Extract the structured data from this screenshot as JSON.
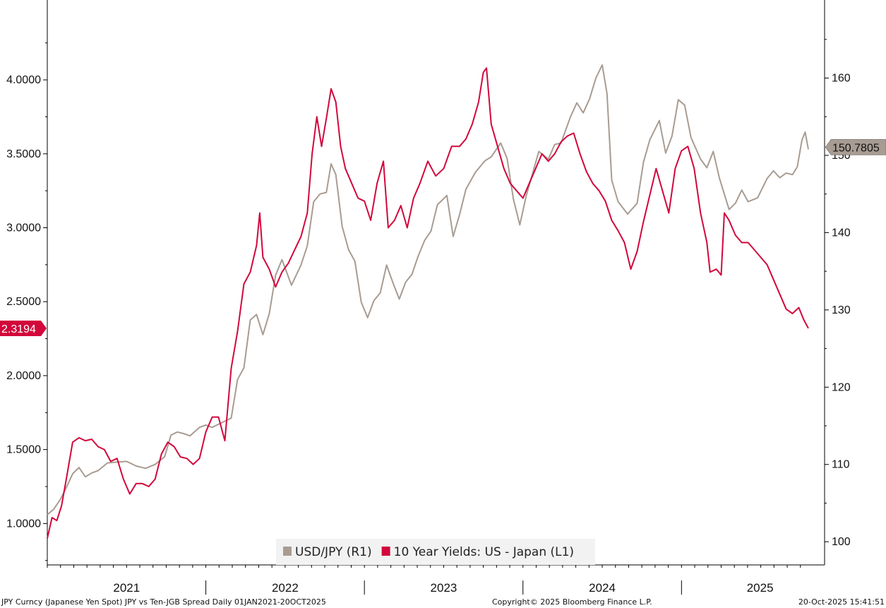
{
  "chart_data": {
    "type": "line",
    "title": "",
    "x_years": [
      "2021",
      "2022",
      "2023",
      "2024",
      "2025"
    ],
    "x_range": [
      "2021-01-01",
      "2025-10-20"
    ],
    "y_left": {
      "range": [
        0.72,
        4.54
      ],
      "ticks": [
        "1.0000",
        "1.5000",
        "2.0000",
        "2.5000",
        "3.0000",
        "3.5000",
        "4.0000"
      ],
      "tick_values": [
        1.0,
        1.5,
        2.0,
        2.5,
        3.0,
        3.5,
        4.0
      ]
    },
    "y_right": {
      "range": [
        97.0,
        170.1
      ],
      "ticks": [
        "100",
        "110",
        "120",
        "130",
        "140",
        "150",
        "160"
      ],
      "tick_values": [
        100,
        110,
        120,
        130,
        140,
        150,
        160
      ]
    },
    "legend": [
      {
        "label": "USD/JPY (R1)",
        "color": "#a89c92"
      },
      {
        "label": "10 Year Yields: US - Japan (L1)",
        "color": "#d2073c"
      }
    ],
    "last_values": {
      "usdjpy": "150.7805",
      "spread": "2.3194"
    },
    "series": [
      {
        "name": "USD/JPY (R1)",
        "axis": "right",
        "color": "#a89c92",
        "points": [
          [
            2021.0,
            103.5
          ],
          [
            2021.04,
            104.2
          ],
          [
            2021.08,
            105.4
          ],
          [
            2021.12,
            107.0
          ],
          [
            2021.16,
            108.8
          ],
          [
            2021.2,
            109.6
          ],
          [
            2021.24,
            108.4
          ],
          [
            2021.28,
            108.9
          ],
          [
            2021.32,
            109.2
          ],
          [
            2021.38,
            110.2
          ],
          [
            2021.44,
            110.3
          ],
          [
            2021.5,
            110.4
          ],
          [
            2021.56,
            109.8
          ],
          [
            2021.62,
            109.5
          ],
          [
            2021.68,
            110.0
          ],
          [
            2021.74,
            111.0
          ],
          [
            2021.78,
            113.8
          ],
          [
            2021.82,
            114.2
          ],
          [
            2021.86,
            114.0
          ],
          [
            2021.9,
            113.7
          ],
          [
            2021.96,
            114.8
          ],
          [
            2022.0,
            115.1
          ],
          [
            2022.04,
            114.8
          ],
          [
            2022.1,
            115.4
          ],
          [
            2022.16,
            116.0
          ],
          [
            2022.2,
            121.0
          ],
          [
            2022.24,
            122.5
          ],
          [
            2022.28,
            128.7
          ],
          [
            2022.32,
            129.4
          ],
          [
            2022.36,
            126.8
          ],
          [
            2022.4,
            129.5
          ],
          [
            2022.44,
            134.5
          ],
          [
            2022.48,
            136.5
          ],
          [
            2022.54,
            133.2
          ],
          [
            2022.6,
            135.8
          ],
          [
            2022.64,
            138.3
          ],
          [
            2022.68,
            144.0
          ],
          [
            2022.72,
            145.0
          ],
          [
            2022.76,
            145.2
          ],
          [
            2022.79,
            148.9
          ],
          [
            2022.82,
            147.5
          ],
          [
            2022.86,
            140.8
          ],
          [
            2022.9,
            137.8
          ],
          [
            2022.94,
            136.3
          ],
          [
            2022.98,
            131.0
          ],
          [
            2023.02,
            129.0
          ],
          [
            2023.06,
            131.2
          ],
          [
            2023.1,
            132.2
          ],
          [
            2023.14,
            135.8
          ],
          [
            2023.18,
            133.5
          ],
          [
            2023.22,
            131.4
          ],
          [
            2023.26,
            133.6
          ],
          [
            2023.3,
            134.6
          ],
          [
            2023.34,
            137.0
          ],
          [
            2023.38,
            139.0
          ],
          [
            2023.42,
            140.2
          ],
          [
            2023.46,
            143.6
          ],
          [
            2023.52,
            144.8
          ],
          [
            2023.56,
            139.5
          ],
          [
            2023.6,
            142.3
          ],
          [
            2023.64,
            145.6
          ],
          [
            2023.7,
            147.8
          ],
          [
            2023.76,
            149.3
          ],
          [
            2023.8,
            149.8
          ],
          [
            2023.86,
            151.6
          ],
          [
            2023.9,
            149.6
          ],
          [
            2023.94,
            144.3
          ],
          [
            2023.98,
            141.0
          ],
          [
            2024.02,
            144.7
          ],
          [
            2024.06,
            147.6
          ],
          [
            2024.1,
            150.5
          ],
          [
            2024.16,
            149.5
          ],
          [
            2024.2,
            151.4
          ],
          [
            2024.24,
            151.6
          ],
          [
            2024.3,
            155.0
          ],
          [
            2024.34,
            156.8
          ],
          [
            2024.38,
            155.5
          ],
          [
            2024.42,
            157.3
          ],
          [
            2024.46,
            160.0
          ],
          [
            2024.5,
            161.7
          ],
          [
            2024.53,
            158.0
          ],
          [
            2024.56,
            146.8
          ],
          [
            2024.6,
            144.0
          ],
          [
            2024.66,
            142.4
          ],
          [
            2024.72,
            143.8
          ],
          [
            2024.76,
            149.1
          ],
          [
            2024.8,
            152.0
          ],
          [
            2024.86,
            154.5
          ],
          [
            2024.9,
            150.3
          ],
          [
            2024.94,
            152.5
          ],
          [
            2024.98,
            157.2
          ],
          [
            2025.02,
            156.5
          ],
          [
            2025.06,
            152.3
          ],
          [
            2025.12,
            149.5
          ],
          [
            2025.16,
            148.4
          ],
          [
            2025.2,
            150.5
          ],
          [
            2025.24,
            147.0
          ],
          [
            2025.3,
            143.0
          ],
          [
            2025.34,
            143.8
          ],
          [
            2025.38,
            145.5
          ],
          [
            2025.42,
            144.0
          ],
          [
            2025.48,
            144.5
          ],
          [
            2025.54,
            147.0
          ],
          [
            2025.58,
            148.0
          ],
          [
            2025.62,
            147.1
          ],
          [
            2025.66,
            147.7
          ],
          [
            2025.7,
            147.5
          ],
          [
            2025.73,
            148.5
          ],
          [
            2025.76,
            152.0
          ],
          [
            2025.78,
            153.0
          ],
          [
            2025.8,
            150.78
          ]
        ]
      },
      {
        "name": "10 Year Yields: US - Japan (L1)",
        "axis": "left",
        "color": "#d2073c",
        "points": [
          [
            2021.0,
            0.9
          ],
          [
            2021.03,
            1.04
          ],
          [
            2021.06,
            1.02
          ],
          [
            2021.09,
            1.12
          ],
          [
            2021.12,
            1.3
          ],
          [
            2021.16,
            1.55
          ],
          [
            2021.2,
            1.58
          ],
          [
            2021.24,
            1.56
          ],
          [
            2021.28,
            1.57
          ],
          [
            2021.32,
            1.52
          ],
          [
            2021.36,
            1.5
          ],
          [
            2021.4,
            1.42
          ],
          [
            2021.44,
            1.44
          ],
          [
            2021.48,
            1.3
          ],
          [
            2021.52,
            1.2
          ],
          [
            2021.56,
            1.27
          ],
          [
            2021.6,
            1.27
          ],
          [
            2021.64,
            1.25
          ],
          [
            2021.68,
            1.3
          ],
          [
            2021.72,
            1.47
          ],
          [
            2021.76,
            1.55
          ],
          [
            2021.8,
            1.52
          ],
          [
            2021.84,
            1.45
          ],
          [
            2021.88,
            1.44
          ],
          [
            2021.92,
            1.4
          ],
          [
            2021.96,
            1.44
          ],
          [
            2022.0,
            1.62
          ],
          [
            2022.04,
            1.72
          ],
          [
            2022.08,
            1.72
          ],
          [
            2022.12,
            1.56
          ],
          [
            2022.16,
            2.05
          ],
          [
            2022.2,
            2.3
          ],
          [
            2022.24,
            2.62
          ],
          [
            2022.28,
            2.7
          ],
          [
            2022.32,
            2.88
          ],
          [
            2022.34,
            3.1
          ],
          [
            2022.36,
            2.8
          ],
          [
            2022.4,
            2.72
          ],
          [
            2022.44,
            2.6
          ],
          [
            2022.48,
            2.7
          ],
          [
            2022.52,
            2.76
          ],
          [
            2022.56,
            2.85
          ],
          [
            2022.6,
            2.94
          ],
          [
            2022.64,
            3.1
          ],
          [
            2022.67,
            3.5
          ],
          [
            2022.7,
            3.75
          ],
          [
            2022.73,
            3.55
          ],
          [
            2022.76,
            3.74
          ],
          [
            2022.79,
            3.94
          ],
          [
            2022.82,
            3.85
          ],
          [
            2022.85,
            3.55
          ],
          [
            2022.88,
            3.4
          ],
          [
            2022.92,
            3.3
          ],
          [
            2022.96,
            3.2
          ],
          [
            2023.0,
            3.18
          ],
          [
            2023.04,
            3.05
          ],
          [
            2023.08,
            3.3
          ],
          [
            2023.12,
            3.45
          ],
          [
            2023.15,
            3.0
          ],
          [
            2023.19,
            3.05
          ],
          [
            2023.23,
            3.15
          ],
          [
            2023.27,
            3.0
          ],
          [
            2023.31,
            3.2
          ],
          [
            2023.35,
            3.3
          ],
          [
            2023.4,
            3.45
          ],
          [
            2023.45,
            3.35
          ],
          [
            2023.5,
            3.4
          ],
          [
            2023.55,
            3.55
          ],
          [
            2023.6,
            3.55
          ],
          [
            2023.64,
            3.6
          ],
          [
            2023.68,
            3.7
          ],
          [
            2023.72,
            3.85
          ],
          [
            2023.75,
            4.05
          ],
          [
            2023.77,
            4.08
          ],
          [
            2023.8,
            3.7
          ],
          [
            2023.84,
            3.55
          ],
          [
            2023.88,
            3.4
          ],
          [
            2023.92,
            3.3
          ],
          [
            2023.96,
            3.25
          ],
          [
            2024.0,
            3.2
          ],
          [
            2024.04,
            3.3
          ],
          [
            2024.08,
            3.4
          ],
          [
            2024.12,
            3.5
          ],
          [
            2024.16,
            3.45
          ],
          [
            2024.2,
            3.5
          ],
          [
            2024.24,
            3.58
          ],
          [
            2024.28,
            3.62
          ],
          [
            2024.32,
            3.64
          ],
          [
            2024.36,
            3.5
          ],
          [
            2024.4,
            3.38
          ],
          [
            2024.44,
            3.3
          ],
          [
            2024.48,
            3.25
          ],
          [
            2024.52,
            3.18
          ],
          [
            2024.56,
            3.05
          ],
          [
            2024.6,
            2.98
          ],
          [
            2024.64,
            2.9
          ],
          [
            2024.68,
            2.72
          ],
          [
            2024.72,
            2.84
          ],
          [
            2024.76,
            3.04
          ],
          [
            2024.8,
            3.22
          ],
          [
            2024.84,
            3.4
          ],
          [
            2024.88,
            3.25
          ],
          [
            2024.92,
            3.1
          ],
          [
            2024.96,
            3.4
          ],
          [
            2025.0,
            3.52
          ],
          [
            2025.04,
            3.55
          ],
          [
            2025.08,
            3.4
          ],
          [
            2025.12,
            3.1
          ],
          [
            2025.16,
            2.9
          ],
          [
            2025.18,
            2.7
          ],
          [
            2025.22,
            2.72
          ],
          [
            2025.25,
            2.68
          ],
          [
            2025.27,
            3.1
          ],
          [
            2025.3,
            3.05
          ],
          [
            2025.34,
            2.95
          ],
          [
            2025.38,
            2.9
          ],
          [
            2025.42,
            2.9
          ],
          [
            2025.46,
            2.85
          ],
          [
            2025.5,
            2.8
          ],
          [
            2025.54,
            2.75
          ],
          [
            2025.58,
            2.65
          ],
          [
            2025.62,
            2.55
          ],
          [
            2025.66,
            2.45
          ],
          [
            2025.7,
            2.42
          ],
          [
            2025.74,
            2.46
          ],
          [
            2025.77,
            2.38
          ],
          [
            2025.8,
            2.32
          ]
        ]
      }
    ]
  },
  "footer": {
    "left": "JPY Curncy (Japanese Yen Spot) JPY vs Ten-JGB Spread Daily 01JAN2021-20OCT2025",
    "center": "Copyright© 2025 Bloomberg Finance L.P.",
    "right": "20-Oct-2025 15:41:51"
  }
}
